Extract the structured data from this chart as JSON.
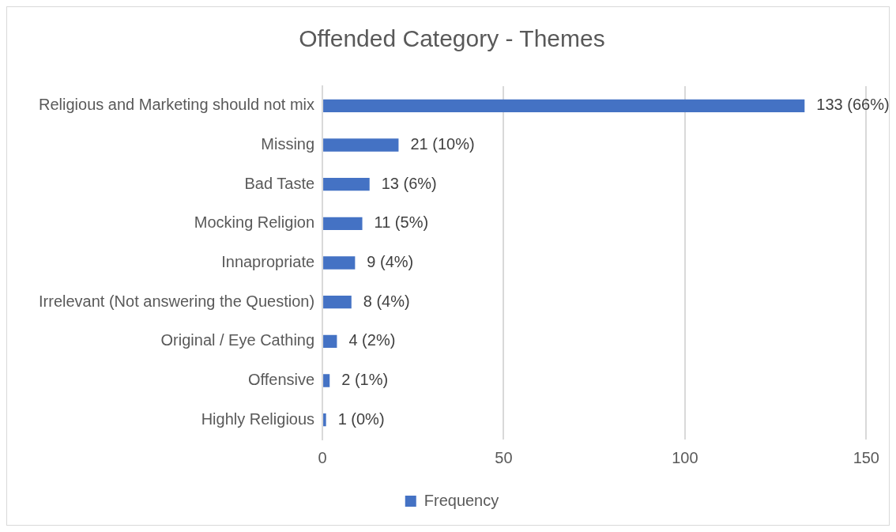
{
  "chart_data": {
    "type": "bar",
    "orientation": "horizontal",
    "title": "Offended Category - Themes",
    "categories": [
      "Religious and Marketing should not mix",
      "Missing",
      "Bad Taste",
      "Mocking Religion",
      "Innapropriate",
      "Irrelevant (Not answering the Question)",
      "Original / Eye Cathing",
      "Offensive",
      "Highly Religious"
    ],
    "series": [
      {
        "name": "Frequency",
        "color": "#4472c4",
        "values": [
          133,
          21,
          13,
          11,
          9,
          8,
          4,
          2,
          1
        ],
        "value_labels": [
          "133 (66%)",
          "21 (10%)",
          "13 (6%)",
          "11 (5%)",
          "9 (4%)",
          "8 (4%)",
          "4 (2%)",
          "2 (1%)",
          "1 (0%)"
        ]
      }
    ],
    "xlim": [
      0,
      150
    ],
    "xticks": [
      0,
      50,
      100,
      150
    ],
    "grid": "x",
    "legend": "bottom"
  }
}
